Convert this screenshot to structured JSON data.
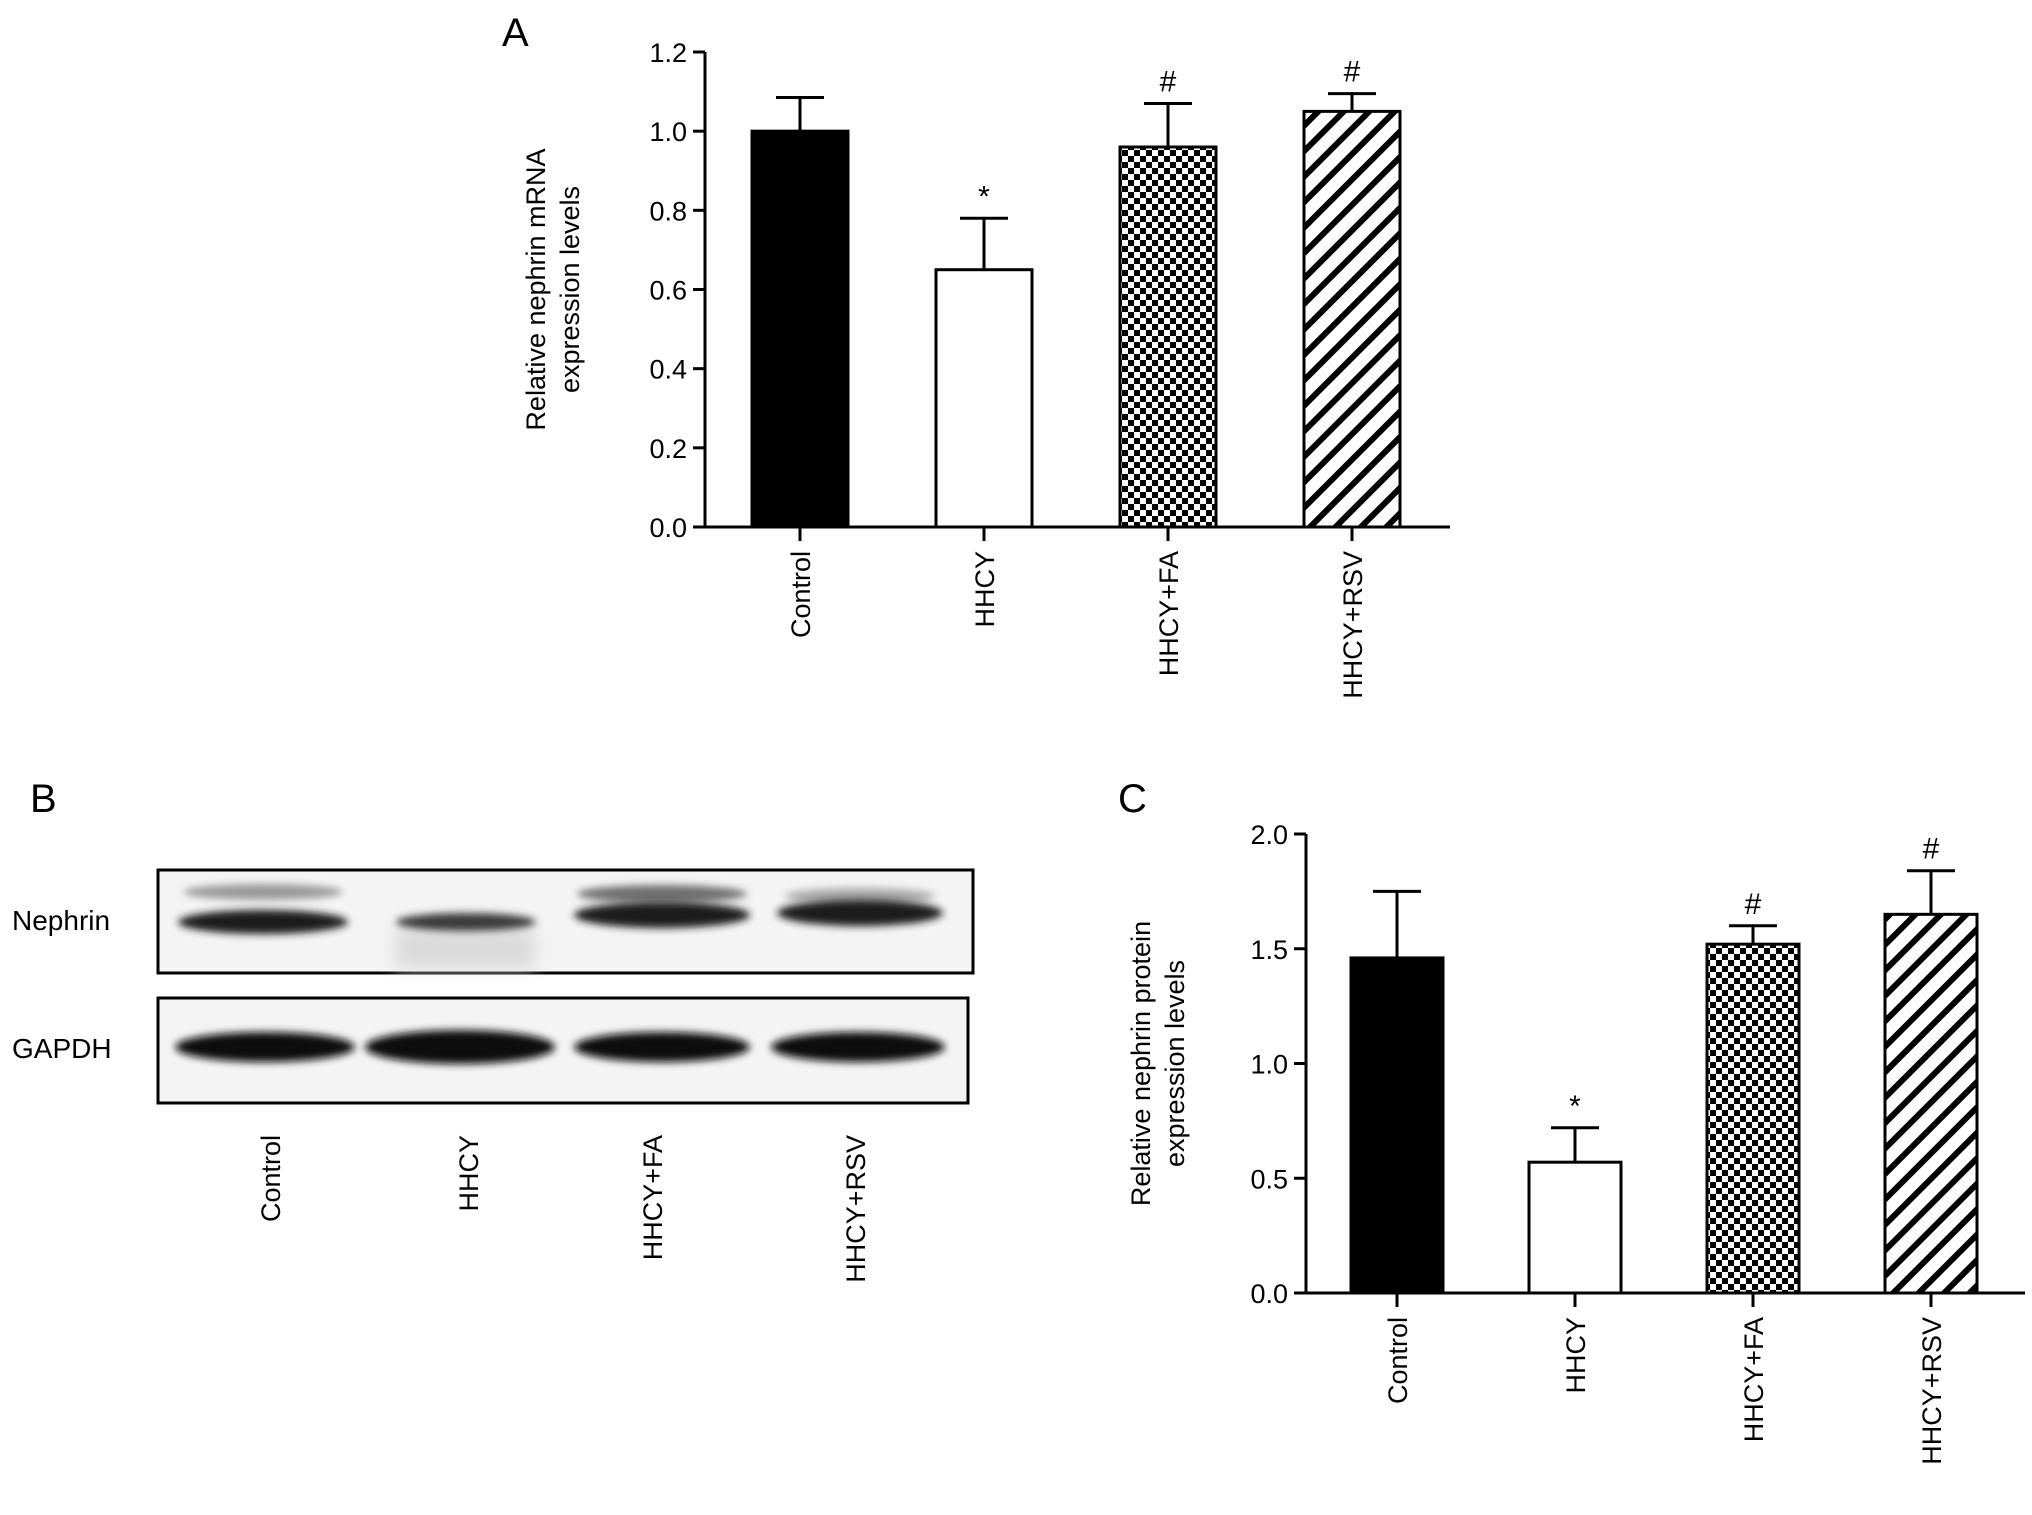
{
  "panels": {
    "a": "A",
    "b": "B",
    "c": "C"
  },
  "chart_data": [
    {
      "panel": "A",
      "type": "bar",
      "categories": [
        "Control",
        "HHCY",
        "HHCY+FA",
        "HHCY+RSV"
      ],
      "values": [
        1.0,
        0.65,
        0.96,
        1.05
      ],
      "errors": [
        0.085,
        0.13,
        0.11,
        0.045
      ],
      "annotations": [
        "",
        "*",
        "#",
        "#"
      ],
      "fills": [
        "solid-black",
        "white",
        "checkerboard",
        "diagonal-hatch"
      ],
      "ylabel": [
        "Relative nephrin mRNA",
        "expression levels"
      ],
      "ylim": [
        0,
        1.2
      ],
      "yticks": [
        "0.0",
        "0.2",
        "0.4",
        "0.6",
        "0.8",
        "1.0",
        "1.2"
      ],
      "grid": false,
      "legend": "none"
    },
    {
      "panel": "C",
      "type": "bar",
      "categories": [
        "Control",
        "HHCY",
        "HHCY+FA",
        "HHCY+RSV"
      ],
      "values": [
        1.46,
        0.57,
        1.52,
        1.65
      ],
      "errors": [
        0.29,
        0.15,
        0.08,
        0.19
      ],
      "annotations": [
        "",
        "*",
        "#",
        "#"
      ],
      "fills": [
        "solid-black",
        "white",
        "checkerboard",
        "diagonal-hatch"
      ],
      "ylabel": [
        "Relative nephrin protein",
        "expression levels"
      ],
      "ylim": [
        0,
        2.0
      ],
      "yticks": [
        "0.0",
        "0.5",
        "1.0",
        "1.5",
        "2.0"
      ],
      "grid": false,
      "legend": "none"
    }
  ],
  "blot": {
    "rows": [
      "Nephrin",
      "GAPDH"
    ],
    "lanes": [
      "Control",
      "HHCY",
      "HHCY+FA",
      "HHCY+RSV"
    ]
  }
}
